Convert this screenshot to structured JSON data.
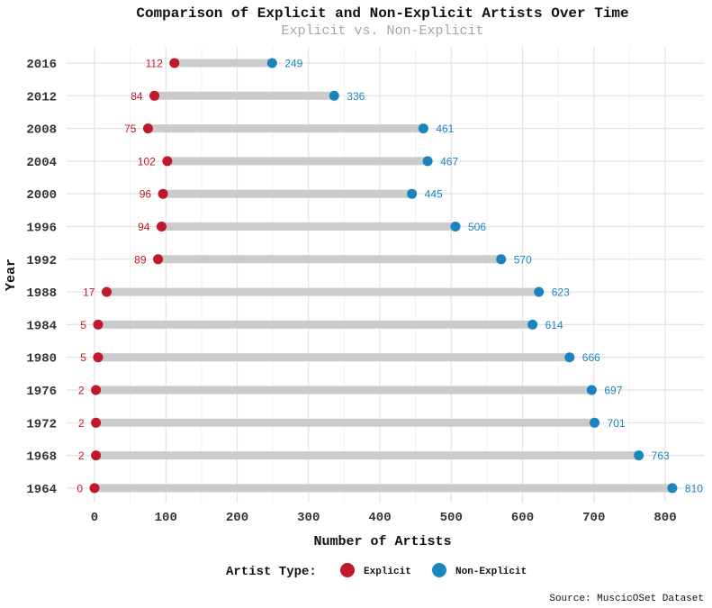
{
  "chart_data": {
    "type": "dumbbell",
    "title": "Comparison of Explicit and Non-Explicit Artists Over Time",
    "subtitle": "Explicit vs. Non-Explicit",
    "xlabel": "Number of Artists",
    "ylabel": "Year",
    "xlim": [
      -35,
      850
    ],
    "x_ticks": [
      0,
      100,
      200,
      300,
      400,
      500,
      600,
      700,
      800
    ],
    "grid": true,
    "legend_title": "Artist Type:",
    "legend_position": "bottom",
    "caption": "Source: MuscicOSet Dataset",
    "categories": [
      "1964",
      "1968",
      "1972",
      "1976",
      "1980",
      "1984",
      "1988",
      "1992",
      "1996",
      "2000",
      "2004",
      "2008",
      "2012",
      "2016"
    ],
    "series": [
      {
        "name": "Explicit",
        "color": "#c0192b",
        "values": [
          0,
          2,
          2,
          2,
          5,
          5,
          17,
          89,
          94,
          96,
          102,
          75,
          84,
          112
        ]
      },
      {
        "name": "Non-Explicit",
        "color": "#1a85bd",
        "values": [
          810,
          763,
          701,
          697,
          666,
          614,
          623,
          570,
          506,
          445,
          467,
          461,
          336,
          249
        ]
      }
    ],
    "segment_color": "#cbcbcb"
  }
}
